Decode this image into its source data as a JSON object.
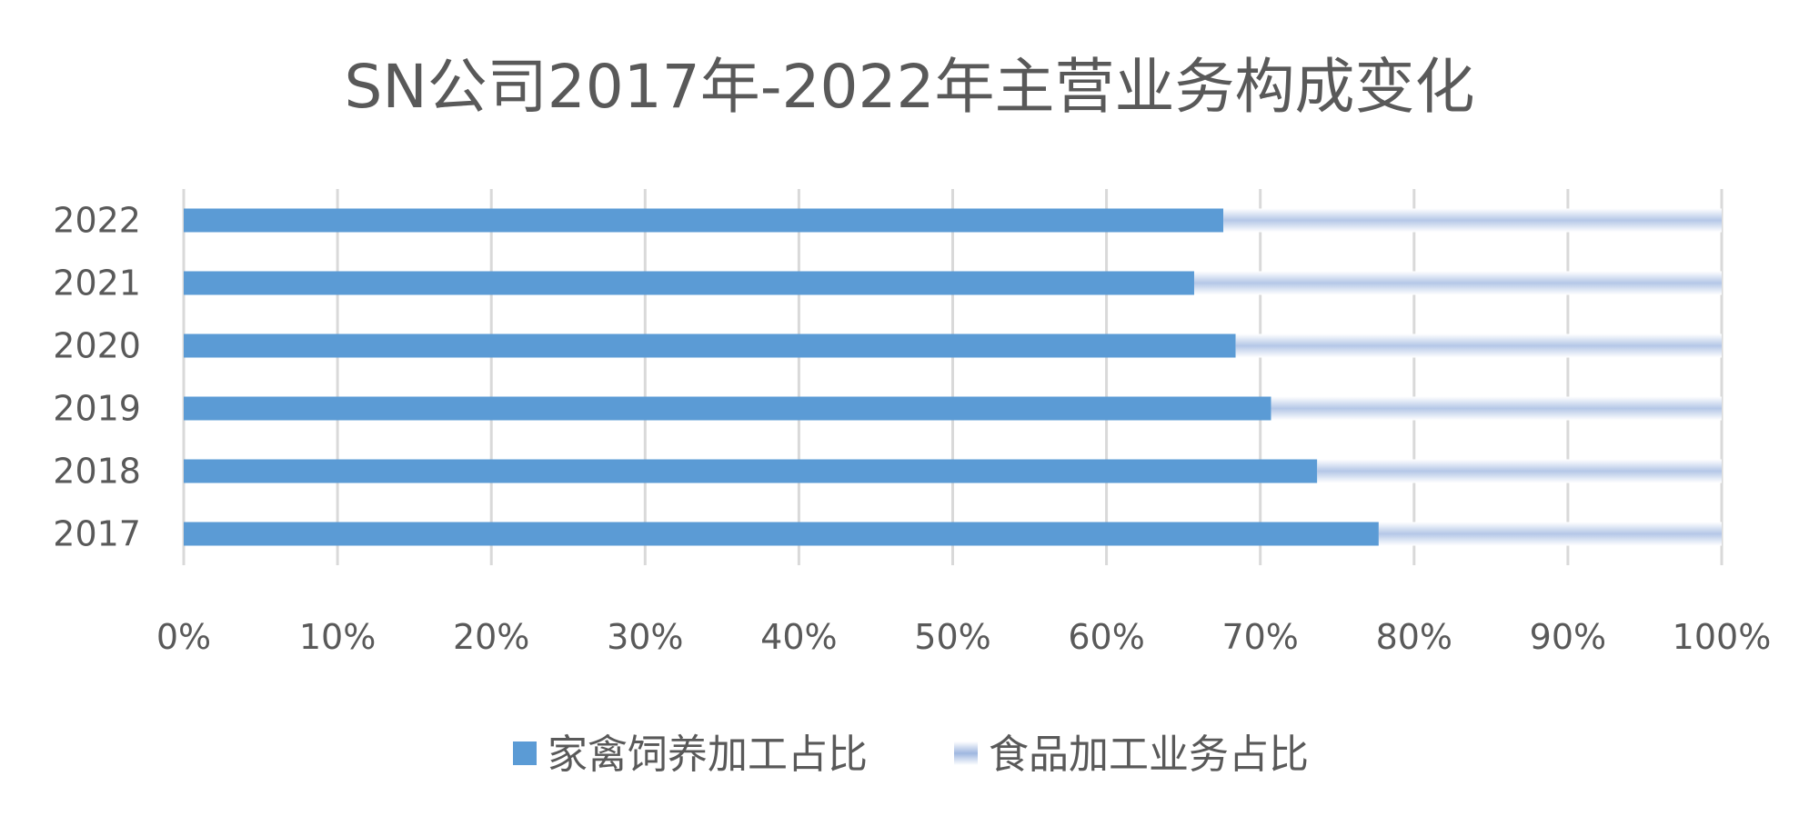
{
  "chart_data": {
    "type": "bar",
    "orientation": "horizontal",
    "stacked": "percent",
    "title": "SN公司2017年-2022年主营业务构成变化",
    "categories": [
      "2017",
      "2018",
      "2019",
      "2020",
      "2021",
      "2022"
    ],
    "series": [
      {
        "name": "家禽饲养加工占比",
        "values": [
          77.7,
          73.7,
          70.7,
          68.4,
          65.7,
          67.6
        ],
        "color": "#5B9BD5"
      },
      {
        "name": "食品加工业务占比",
        "values": [
          22.3,
          26.3,
          29.3,
          31.6,
          34.3,
          32.4
        ],
        "color": "#B4C7E7",
        "fill": "gradient"
      }
    ],
    "x_ticks": [
      "0%",
      "10%",
      "20%",
      "30%",
      "40%",
      "50%",
      "60%",
      "70%",
      "80%",
      "90%",
      "100%"
    ],
    "xlim": [
      0,
      100
    ],
    "grid": true,
    "legend": "bottom"
  }
}
